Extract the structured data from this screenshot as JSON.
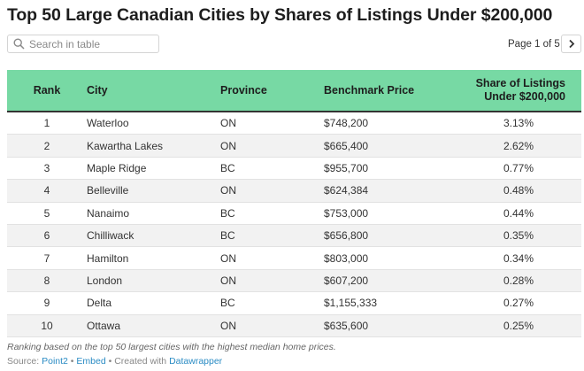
{
  "title": "Top 50 Large Canadian Cities by Shares of Listings Under $200,000",
  "search": {
    "placeholder": "Search in table"
  },
  "pager": {
    "text": "Page 1 of 5",
    "next_symbol": "next"
  },
  "table": {
    "headers": [
      "Rank",
      "City",
      "Province",
      "Benchmark Price",
      "Share of Listings",
      "Under $200,000"
    ],
    "rows": [
      [
        "1",
        "Waterloo",
        "ON",
        "$748,200",
        "3.13%"
      ],
      [
        "2",
        "Kawartha Lakes",
        "ON",
        "$665,400",
        "2.62%"
      ],
      [
        "3",
        "Maple Ridge",
        "BC",
        "$955,700",
        "0.77%"
      ],
      [
        "4",
        "Belleville",
        "ON",
        "$624,384",
        "0.48%"
      ],
      [
        "5",
        "Nanaimo",
        "BC",
        "$753,000",
        "0.44%"
      ],
      [
        "6",
        "Chilliwack",
        "BC",
        "$656,800",
        "0.35%"
      ],
      [
        "7",
        "Hamilton",
        "ON",
        "$803,000",
        "0.34%"
      ],
      [
        "8",
        "London",
        "ON",
        "$607,200",
        "0.28%"
      ],
      [
        "9",
        "Delta",
        "BC",
        "$1,155,333",
        "0.27%"
      ],
      [
        "10",
        "Ottawa",
        "ON",
        "$635,600",
        "0.25%"
      ]
    ]
  },
  "footer": {
    "note": "Ranking based on the top 50 largest cities with the highest median home prices.",
    "source_prefix": "Source: ",
    "source_link": "Point2",
    "sep1": " • ",
    "embed_link": "Embed",
    "sep2": " • Created with ",
    "created_link": "Datawrapper"
  },
  "colors": {
    "header_bg": "#77d9a4",
    "link": "#2b8cc4"
  }
}
